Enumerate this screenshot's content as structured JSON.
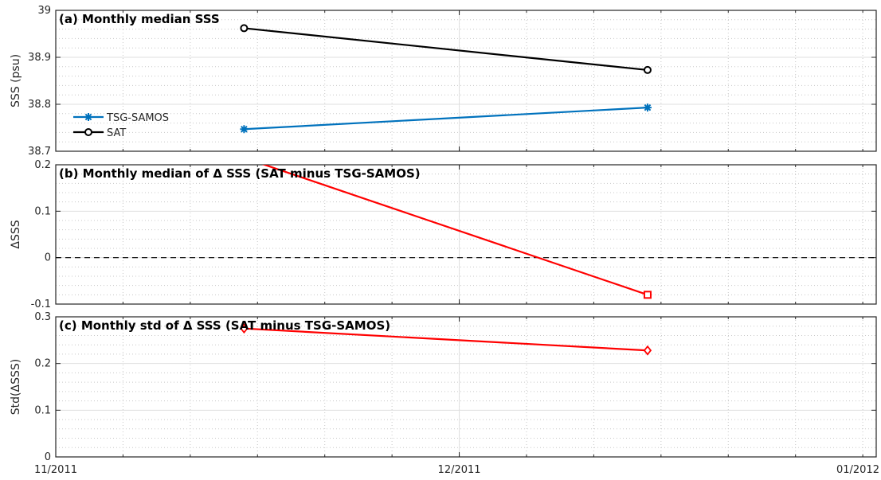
{
  "colors": {
    "tsg": "#0072BD",
    "sat": "#000000",
    "delta": "#FF0000",
    "grid_major": "#DFDFDF",
    "grid_minor": "#C8C8C8",
    "axis": "#262626"
  },
  "chart_data": [
    {
      "type": "line",
      "title": "(a) Monthly median SSS",
      "xlabel": "",
      "ylabel": "SSS (psu)",
      "x_range": [
        "2011-11-01",
        "2012-01-01"
      ],
      "ylim": [
        38.7,
        39
      ],
      "yticks": [
        "38.7",
        "38.8",
        "38.9",
        "39"
      ],
      "grid": true,
      "legend_position": "lower-left",
      "series": [
        {
          "name": "TSG-SAMOS",
          "marker": "asterisk",
          "color": "#0072BD",
          "x": [
            "2011-11-15",
            "2011-12-15"
          ],
          "y": [
            38.747,
            38.793
          ]
        },
        {
          "name": "SAT",
          "marker": "circle",
          "color": "#000000",
          "x": [
            "2011-11-15",
            "2011-12-15"
          ],
          "y": [
            38.962,
            38.873
          ]
        }
      ]
    },
    {
      "type": "line",
      "title": "(b) Monthly median of Δ SSS (SAT minus TSG-SAMOS)",
      "xlabel": "",
      "ylabel": "ΔSSS",
      "x_range": [
        "2011-11-01",
        "2012-01-01"
      ],
      "ylim": [
        -0.1,
        0.2
      ],
      "yticks": [
        "-0.1",
        "0",
        "0.1",
        "0.2"
      ],
      "grid": true,
      "reference_line": {
        "y": 0,
        "style": "dashed"
      },
      "series": [
        {
          "name": "",
          "marker": "square",
          "color": "#FF0000",
          "x": [
            "2011-11-15",
            "2011-12-15"
          ],
          "y": [
            0.215,
            -0.08
          ]
        }
      ]
    },
    {
      "type": "line",
      "title": "(c) Monthly std of Δ SSS (SAT minus TSG-SAMOS)",
      "xlabel": "",
      "ylabel": "Std(ΔSSS)",
      "x_range": [
        "2011-11-01",
        "2012-01-01"
      ],
      "ylim": [
        0,
        0.3
      ],
      "yticks": [
        "0",
        "0.1",
        "0.2",
        "0.3"
      ],
      "xticks": [
        "11/2011",
        "12/2011",
        "01/2012"
      ],
      "grid": true,
      "series": [
        {
          "name": "",
          "marker": "diamond",
          "color": "#FF0000",
          "x": [
            "2011-11-15",
            "2011-12-15"
          ],
          "y": [
            0.275,
            0.228
          ]
        }
      ]
    }
  ]
}
